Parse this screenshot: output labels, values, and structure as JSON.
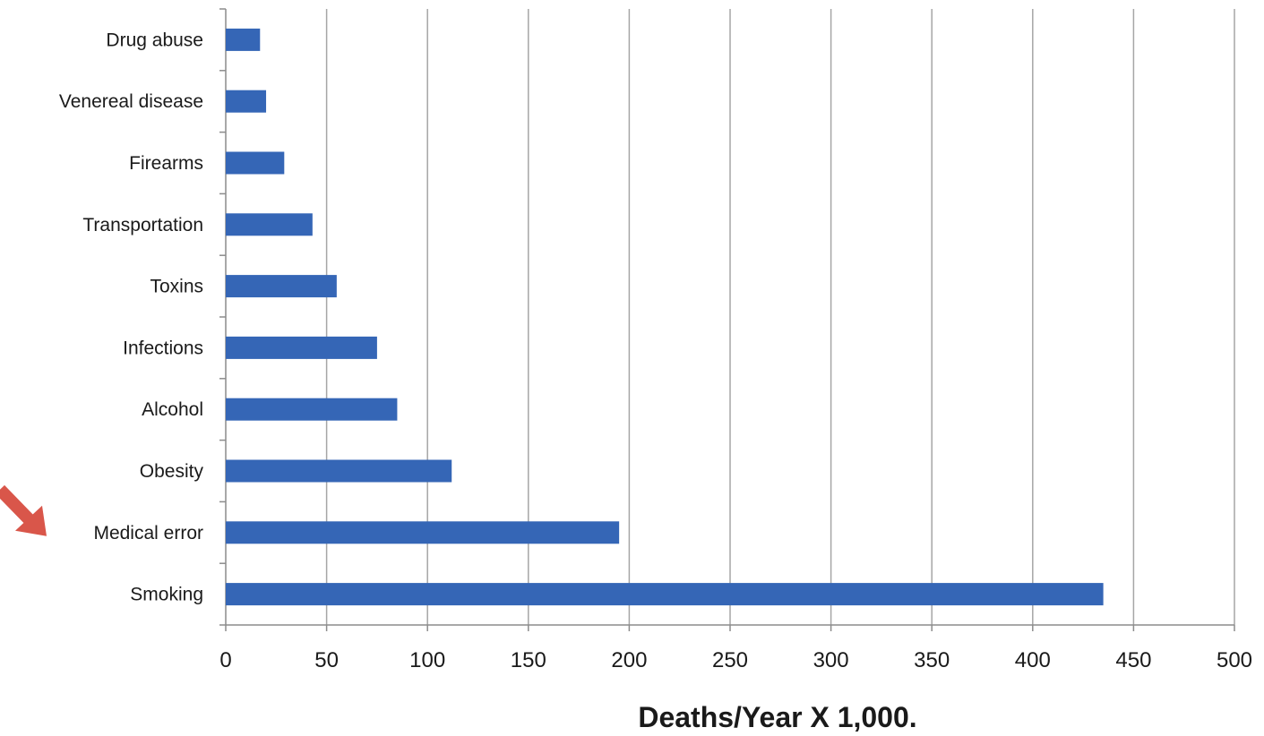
{
  "chart_data": {
    "type": "bar",
    "orientation": "horizontal",
    "categories": [
      "Drug abuse",
      "Venereal disease",
      "Firearms",
      "Transportation",
      "Toxins",
      "Infections",
      "Alcohol",
      "Obesity",
      "Medical error",
      "Smoking"
    ],
    "values": [
      17,
      20,
      29,
      43,
      55,
      75,
      85,
      112,
      195,
      435
    ],
    "xlabel": "Deaths/Year X 1,000.",
    "ylabel": "",
    "xlim": [
      0,
      500
    ],
    "xticks": [
      0,
      50,
      100,
      150,
      200,
      250,
      300,
      350,
      400,
      450,
      500
    ],
    "grid": "vertical",
    "bar_color": "#3566b6",
    "grid_color": "#a6a6a6",
    "axis_color": "#8c8c8c",
    "highlighted_category": "Medical error",
    "arrow_color": "#d9564a"
  }
}
